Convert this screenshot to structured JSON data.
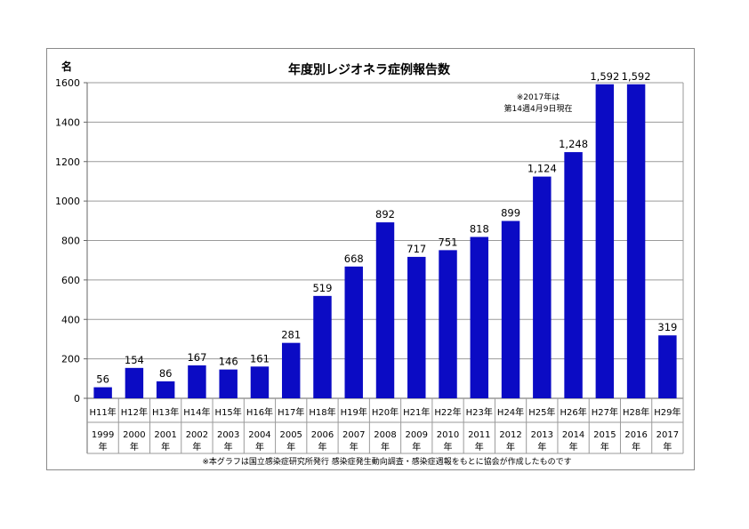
{
  "chart_data": {
    "type": "bar",
    "title": "年度別レジオネラ症例報告数",
    "ylabel": "名",
    "ylim": [
      0,
      1600
    ],
    "yticks": [
      0,
      200,
      400,
      600,
      800,
      1000,
      1200,
      1400,
      1600
    ],
    "grid": true,
    "categories": [
      {
        "era": "H11年",
        "year": "1999",
        "unit": "年"
      },
      {
        "era": "H12年",
        "year": "2000",
        "unit": "年"
      },
      {
        "era": "H13年",
        "year": "2001",
        "unit": "年"
      },
      {
        "era": "H14年",
        "year": "2002",
        "unit": "年"
      },
      {
        "era": "H15年",
        "year": "2003",
        "unit": "年"
      },
      {
        "era": "H16年",
        "year": "2004",
        "unit": "年"
      },
      {
        "era": "H17年",
        "year": "2005",
        "unit": "年"
      },
      {
        "era": "H18年",
        "year": "2006",
        "unit": "年"
      },
      {
        "era": "H19年",
        "year": "2007",
        "unit": "年"
      },
      {
        "era": "H20年",
        "year": "2008",
        "unit": "年"
      },
      {
        "era": "H21年",
        "year": "2009",
        "unit": "年"
      },
      {
        "era": "H22年",
        "year": "2010",
        "unit": "年"
      },
      {
        "era": "H23年",
        "year": "2011",
        "unit": "年"
      },
      {
        "era": "H24年",
        "year": "2012",
        "unit": "年"
      },
      {
        "era": "H25年",
        "year": "2013",
        "unit": "年"
      },
      {
        "era": "H26年",
        "year": "2014",
        "unit": "年"
      },
      {
        "era": "H27年",
        "year": "2015",
        "unit": "年"
      },
      {
        "era": "H28年",
        "year": "2016",
        "unit": "年"
      },
      {
        "era": "H29年",
        "year": "2017",
        "unit": "年"
      }
    ],
    "values": [
      56,
      154,
      86,
      167,
      146,
      161,
      281,
      519,
      668,
      892,
      717,
      751,
      818,
      899,
      1124,
      1248,
      1592,
      1592,
      319
    ],
    "value_labels": [
      "56",
      "154",
      "86",
      "167",
      "146",
      "161",
      "281",
      "519",
      "668",
      "892",
      "717",
      "751",
      "818",
      "899",
      "1,124",
      "1,248",
      "1,592",
      "1,592",
      "319"
    ],
    "bar_color": "#0b0bc4",
    "highlight_label_color": "#e0261b",
    "highlight_index": 18,
    "annotation": [
      "※2017年は",
      "第14週4月9日現在"
    ],
    "source_note": "※本グラフは国立感染症研究所発行 感染症発生動向調査・感染症週報をもとに協会が作成したものです"
  }
}
